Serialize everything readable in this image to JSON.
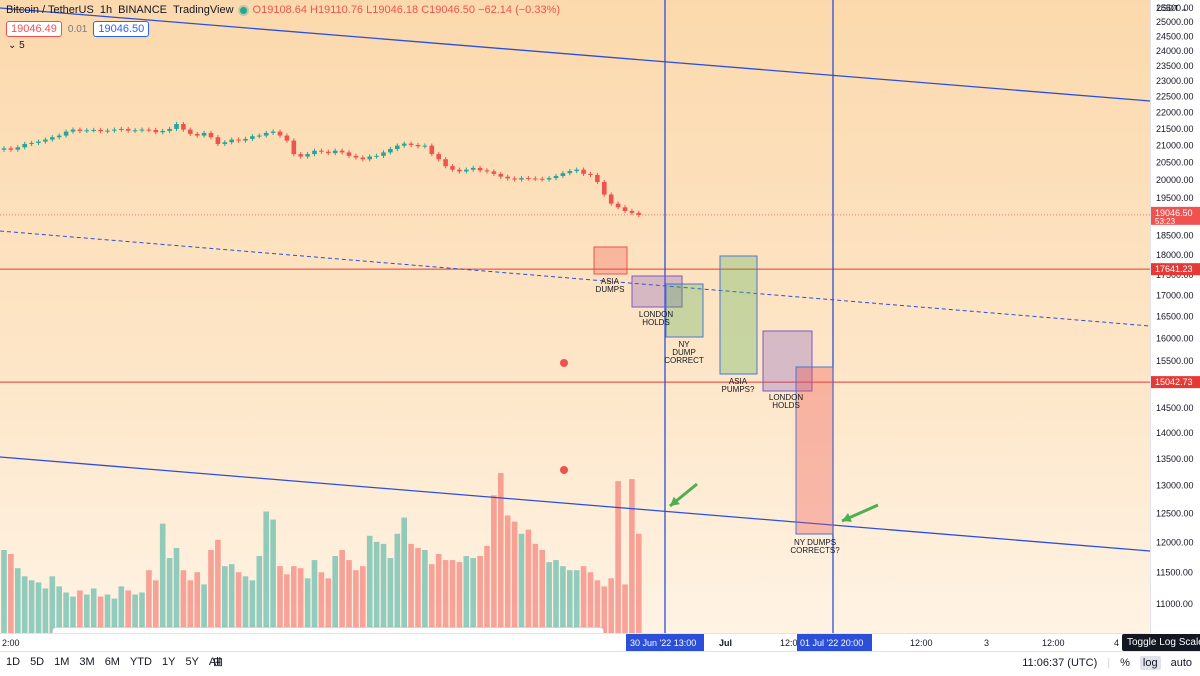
{
  "header": {
    "symbol": "Bitcoin / TetherUS",
    "interval": "1h",
    "exchange": "BINANCE",
    "source": "TradingView",
    "open": "O19108.64",
    "high": "H19110.76",
    "low": "L19046.18",
    "close": "C19046.50",
    "change": "−62.14 (−0.33%)",
    "bid": "19046.49",
    "spread": "0.01",
    "ask": "19046.50",
    "indicators_count": "5"
  },
  "price_axis": {
    "currency": "USDT",
    "ticks": [
      "25500.00",
      "25000.00",
      "24500.00",
      "24000.00",
      "23500.00",
      "23000.00",
      "22500.00",
      "22000.00",
      "21500.00",
      "21000.00",
      "20500.00",
      "20000.00",
      "19500.00",
      "19000.00",
      "18500.00",
      "18000.00",
      "17500.00",
      "17000.00",
      "16500.00",
      "16000.00",
      "15500.00",
      "15000.00",
      "14500.00",
      "14000.00",
      "13500.00",
      "13000.00",
      "12500.00",
      "12000.00",
      "11500.00",
      "11000.00"
    ],
    "current_price": "19046.50",
    "countdown": "53:23",
    "level_1": "17641.23",
    "level_2": "15042.73"
  },
  "time_axis": {
    "labels": [
      {
        "text": "2:00"
      },
      {
        "text": "Jul"
      },
      {
        "text": "12:0"
      },
      {
        "text": "12:00"
      },
      {
        "text": "3"
      },
      {
        "text": "12:00"
      },
      {
        "text": "4"
      }
    ],
    "marker_1": "30 Jun '22   13:00",
    "marker_2": "01 Jul '22   20:00"
  },
  "annotations": {
    "asia_dumps": [
      "ASIA",
      "DUMPS"
    ],
    "london_holds": [
      "LONDON",
      "HOLDS"
    ],
    "ny_dump_correct": [
      "NY",
      "DUMP",
      "CORRECT"
    ],
    "asia_pumps": [
      "ASIA",
      "PUMPS?"
    ],
    "london_holds_2": [
      "LONDON",
      "HOLDS"
    ],
    "ny_dumps_corrects": [
      "NY DUMPS",
      "CORRECTS?"
    ]
  },
  "bottom_bar": {
    "timeframes": [
      "1D",
      "5D",
      "1M",
      "3M",
      "6M",
      "YTD",
      "1Y",
      "5Y",
      "All"
    ],
    "clock": "11:06:37 (UTC)",
    "percent": "%",
    "log": "log",
    "auto": "auto",
    "tooltip": "Toggle Log Scale"
  },
  "colors": {
    "up": "#26a69a",
    "down": "#ef5350",
    "trend": "#2b4fd8",
    "level": "#e53935"
  },
  "chart_data": {
    "type": "candlestick",
    "title": "Bitcoin / TetherUS",
    "scale": "log",
    "ylim": [
      10800,
      25800
    ],
    "candles_close": [
      20920,
      20880,
      20950,
      21050,
      21080,
      21120,
      21180,
      21250,
      21300,
      21420,
      21480,
      21440,
      21460,
      21470,
      21430,
      21450,
      21480,
      21500,
      21450,
      21460,
      21480,
      21470,
      21400,
      21440,
      21500,
      21650,
      21480,
      21350,
      21300,
      21380,
      21250,
      21050,
      21100,
      21180,
      21150,
      21200,
      21280,
      21300,
      21380,
      21420,
      21300,
      21150,
      20750,
      20680,
      20750,
      20850,
      20820,
      20780,
      20850,
      20800,
      20700,
      20650,
      20600,
      20680,
      20700,
      20800,
      20900,
      21000,
      21060,
      21020,
      20980,
      21000,
      20750,
      20600,
      20400,
      20300,
      20250,
      20300,
      20350,
      20280,
      20250,
      20180,
      20100,
      20050,
      20020,
      20060,
      20050,
      20040,
      20020,
      20060,
      20120,
      20200,
      20260,
      20300,
      20180,
      20150,
      19950,
      19600,
      19350,
      19250,
      19150,
      19100,
      19046
    ],
    "volume": [
      4100,
      3900,
      3200,
      2800,
      2600,
      2500,
      2200,
      2800,
      2300,
      2000,
      1800,
      2100,
      1900,
      2200,
      1800,
      1900,
      1700,
      2300,
      2100,
      1900,
      2000,
      3100,
      2600,
      5400,
      3700,
      4200,
      3100,
      2600,
      3000,
      2400,
      4100,
      4600,
      3300,
      3400,
      3000,
      2800,
      2600,
      3800,
      6000,
      5600,
      3300,
      2900,
      3300,
      3200,
      2700,
      3600,
      3000,
      2700,
      3800,
      4100,
      3600,
      3100,
      3300,
      4800,
      4500,
      4400,
      3700,
      4900,
      5700,
      4400,
      4200,
      4100,
      3400,
      3900,
      3600,
      3600,
      3500,
      3800,
      3700,
      3800,
      4300,
      6800,
      7900,
      5800,
      5500,
      4900,
      5100,
      4400,
      4100,
      3500,
      3600,
      3300,
      3100,
      3100,
      3300,
      3000,
      2600,
      2300,
      2700,
      7500,
      2400,
      7600,
      4900
    ]
  }
}
